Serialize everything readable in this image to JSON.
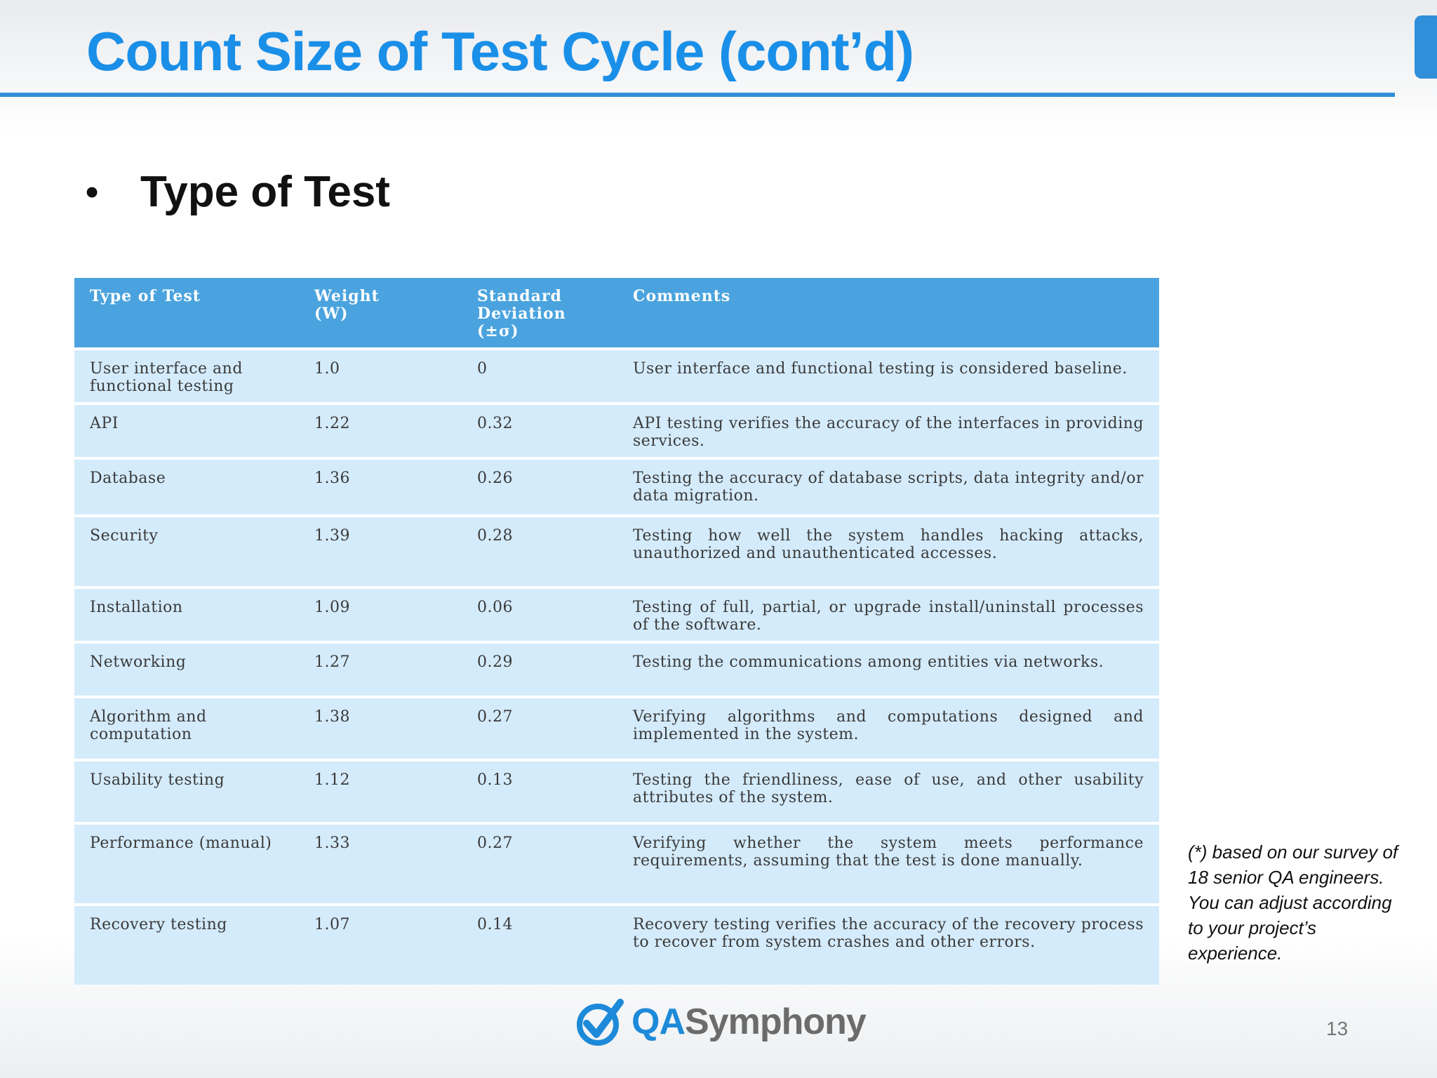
{
  "slide": {
    "title": "Count Size of Test Cycle (cont’d)",
    "bullet": "Type of Test",
    "note": "(*) based on our survey of 18 senior QA engineers. You can adjust according to your project’s experience.",
    "page_number": "13",
    "logo": {
      "prefix": "QA",
      "suffix": "Symphony",
      "icon": "check-mark-icon"
    },
    "colors": {
      "title": "#1a8fe8",
      "header": "#4aa3de",
      "row": "#d4ebfb"
    }
  },
  "table": {
    "headers": {
      "type": "Type of Test",
      "weight_1": "Weight",
      "weight_2": "(W)",
      "sd_1": "Standard",
      "sd_2": "Deviation",
      "sd_3": "(±σ)",
      "comments": "Comments"
    },
    "rows": [
      {
        "type": "User interface and functional testing",
        "weight": "1.0",
        "sd": "0",
        "comment": "User interface and functional testing is considered baseline."
      },
      {
        "type": "API",
        "weight": "1.22",
        "sd": "0.32",
        "comment": "API testing verifies the accuracy of the interfaces in providing services."
      },
      {
        "type": "Database",
        "weight": "1.36",
        "sd": "0.26",
        "comment": "Testing the accuracy of database scripts, data integrity and/or data migration."
      },
      {
        "type": "Security",
        "weight": "1.39",
        "sd": "0.28",
        "comment": "Testing how well the system handles hacking attacks, unauthorized and unauthenticated accesses."
      },
      {
        "type": "Installation",
        "weight": "1.09",
        "sd": "0.06",
        "comment": "Testing of full, partial, or upgrade install/uninstall processes of the software."
      },
      {
        "type": "Networking",
        "weight": "1.27",
        "sd": "0.29",
        "comment": "Testing the communications among entities via networks."
      },
      {
        "type": "Algorithm and computation",
        "weight": "1.38",
        "sd": "0.27",
        "comment": "Verifying algorithms and computations designed and implemented in the system."
      },
      {
        "type": "Usability testing",
        "weight": "1.12",
        "sd": "0.13",
        "comment": "Testing the friendliness, ease of use, and other usability attributes of the system."
      },
      {
        "type": "Performance (manual)",
        "weight": "1.33",
        "sd": "0.27",
        "comment": "Verifying whether the system meets performance requirements, assuming that the test is done manually."
      },
      {
        "type": "Recovery testing",
        "weight": "1.07",
        "sd": "0.14",
        "comment": "Recovery testing verifies the accuracy of the recovery process to recover from system crashes and other errors."
      }
    ]
  }
}
